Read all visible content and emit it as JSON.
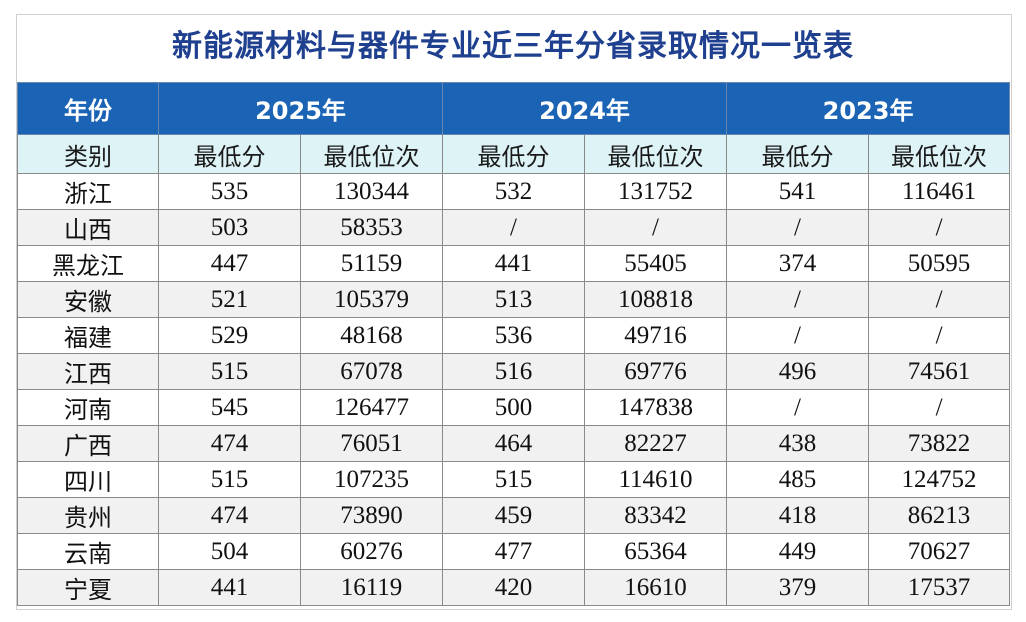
{
  "title": "新能源材料与器件专业近三年分省录取情况一览表",
  "header": {
    "year_label": "年份",
    "category_label": "类别",
    "years": [
      "2025年",
      "2024年",
      "2023年"
    ],
    "sub": [
      "最低分",
      "最低位次",
      "最低分",
      "最低位次",
      "最低分",
      "最低位次"
    ]
  },
  "rows": [
    {
      "province": "浙江",
      "cells": [
        "535",
        "130344",
        "532",
        "131752",
        "541",
        "116461"
      ]
    },
    {
      "province": "山西",
      "cells": [
        "503",
        "58353",
        "/",
        "/",
        "/",
        "/"
      ]
    },
    {
      "province": "黑龙江",
      "cells": [
        "447",
        "51159",
        "441",
        "55405",
        "374",
        "50595"
      ]
    },
    {
      "province": "安徽",
      "cells": [
        "521",
        "105379",
        "513",
        "108818",
        "/",
        "/"
      ]
    },
    {
      "province": "福建",
      "cells": [
        "529",
        "48168",
        "536",
        "49716",
        "/",
        "/"
      ]
    },
    {
      "province": "江西",
      "cells": [
        "515",
        "67078",
        "516",
        "69776",
        "496",
        "74561"
      ]
    },
    {
      "province": "河南",
      "cells": [
        "545",
        "126477",
        "500",
        "147838",
        "/",
        "/"
      ]
    },
    {
      "province": "广西",
      "cells": [
        "474",
        "76051",
        "464",
        "82227",
        "438",
        "73822"
      ]
    },
    {
      "province": "四川",
      "cells": [
        "515",
        "107235",
        "515",
        "114610",
        "485",
        "124752"
      ]
    },
    {
      "province": "贵州",
      "cells": [
        "474",
        "73890",
        "459",
        "83342",
        "418",
        "86213"
      ]
    },
    {
      "province": "云南",
      "cells": [
        "504",
        "60276",
        "477",
        "65364",
        "449",
        "70627"
      ]
    },
    {
      "province": "宁夏",
      "cells": [
        "441",
        "16119",
        "420",
        "16610",
        "379",
        "17537"
      ]
    }
  ],
  "colors": {
    "title": "#1f3f8f",
    "header_bg": "#1b63b4",
    "subheader_bg": "#ddf3f6",
    "alt_row_bg": "#f1f1f1"
  }
}
